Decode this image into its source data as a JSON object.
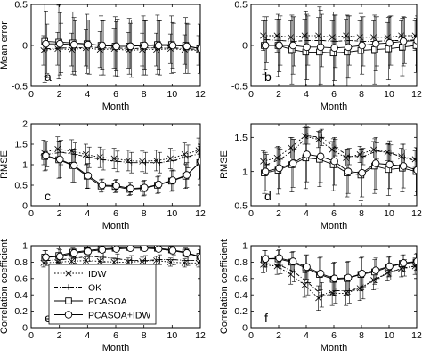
{
  "chart_data": [
    {
      "type": "line",
      "panel_label": "a",
      "xlabel": "Month",
      "ylabel": "Mean error",
      "xlim": [
        0,
        12
      ],
      "ylim": [
        -0.5,
        0.5
      ],
      "xticks": [
        0,
        2,
        4,
        6,
        8,
        10,
        12
      ],
      "yticks": [
        -0.5,
        0,
        0.5
      ],
      "x": [
        1,
        2,
        3,
        4,
        5,
        6,
        7,
        8,
        9,
        10,
        11,
        12
      ],
      "series": [
        {
          "name": "IDW",
          "values": [
            -0.06,
            -0.04,
            -0.05,
            -0.03,
            -0.05,
            -0.04,
            -0.06,
            -0.05,
            -0.05,
            -0.04,
            -0.05,
            -0.06
          ],
          "err": [
            0.18,
            0.2,
            0.2,
            0.22,
            0.22,
            0.24,
            0.22,
            0.2,
            0.2,
            0.18,
            0.18,
            0.18
          ]
        },
        {
          "name": "OK",
          "values": [
            -0.04,
            -0.03,
            -0.03,
            -0.02,
            -0.03,
            -0.03,
            -0.04,
            -0.03,
            -0.03,
            -0.03,
            -0.04,
            -0.05
          ],
          "err": [
            0.3,
            0.3,
            0.33,
            0.33,
            0.33,
            0.35,
            0.35,
            0.33,
            0.33,
            0.3,
            0.3,
            0.3
          ]
        },
        {
          "name": "PCASOA",
          "values": [
            0.05,
            0.04,
            0.03,
            0.02,
            0.0,
            -0.01,
            -0.01,
            0.0,
            0.01,
            0.01,
            0.0,
            -0.04
          ],
          "err": [
            0.5,
            0.45,
            0.38,
            0.36,
            0.36,
            0.36,
            0.34,
            0.36,
            0.36,
            0.35,
            0.34,
            0.3
          ]
        },
        {
          "name": "PCASOA+IDW",
          "values": [
            0.02,
            0.02,
            0.01,
            0.01,
            0.0,
            -0.01,
            -0.01,
            0.0,
            0.0,
            0.0,
            -0.01,
            -0.04
          ],
          "err": [
            0.4,
            0.38,
            0.33,
            0.3,
            0.3,
            0.3,
            0.28,
            0.3,
            0.3,
            0.28,
            0.28,
            0.25
          ]
        }
      ]
    },
    {
      "type": "line",
      "panel_label": "b",
      "xlabel": "Month",
      "ylabel": "",
      "xlim": [
        0,
        12
      ],
      "ylim": [
        -0.5,
        0.5
      ],
      "xticks": [
        0,
        2,
        4,
        6,
        8,
        10,
        12
      ],
      "yticks": [
        -0.5,
        0,
        0.5
      ],
      "x": [
        1,
        2,
        3,
        4,
        5,
        6,
        7,
        8,
        9,
        10,
        11,
        12
      ],
      "series": [
        {
          "name": "IDW",
          "values": [
            0.12,
            0.12,
            0.1,
            0.12,
            0.12,
            0.1,
            0.12,
            0.1,
            0.1,
            0.1,
            0.12,
            0.12
          ],
          "err": [
            0.18,
            0.2,
            0.2,
            0.2,
            0.22,
            0.2,
            0.2,
            0.2,
            0.2,
            0.18,
            0.18,
            0.18
          ]
        },
        {
          "name": "OK",
          "values": [
            0.07,
            0.06,
            0.05,
            0.06,
            0.06,
            0.05,
            0.06,
            0.05,
            0.05,
            0.06,
            0.06,
            0.07
          ],
          "err": [
            0.28,
            0.3,
            0.3,
            0.3,
            0.32,
            0.32,
            0.3,
            0.3,
            0.3,
            0.3,
            0.28,
            0.28
          ]
        },
        {
          "name": "PCASOA",
          "values": [
            0.0,
            0.0,
            -0.05,
            -0.08,
            -0.08,
            -0.09,
            -0.08,
            -0.06,
            -0.05,
            -0.04,
            -0.02,
            0.0
          ],
          "err": [
            0.35,
            0.38,
            0.42,
            0.5,
            0.55,
            0.5,
            0.45,
            0.45,
            0.42,
            0.38,
            0.35,
            0.33
          ]
        },
        {
          "name": "PCASOA+IDW",
          "values": [
            0.0,
            0.0,
            0.0,
            -0.02,
            -0.02,
            -0.03,
            -0.02,
            0.0,
            0.02,
            0.03,
            0.05,
            0.06
          ],
          "err": [
            0.3,
            0.32,
            0.35,
            0.4,
            0.45,
            0.4,
            0.38,
            0.35,
            0.33,
            0.32,
            0.3,
            0.3
          ]
        }
      ]
    },
    {
      "type": "line",
      "panel_label": "c",
      "xlabel": "Month",
      "ylabel": "RMSE",
      "xlim": [
        0,
        12
      ],
      "ylim": [
        0,
        2
      ],
      "xticks": [
        0,
        2,
        4,
        6,
        8,
        10,
        12
      ],
      "yticks": [
        0,
        0.5,
        1,
        1.5,
        2
      ],
      "x": [
        1,
        2,
        3,
        4,
        5,
        6,
        7,
        8,
        9,
        10,
        11,
        12
      ],
      "series": [
        {
          "name": "IDW",
          "values": [
            1.3,
            1.38,
            1.33,
            1.25,
            1.18,
            1.15,
            1.1,
            1.08,
            1.1,
            1.15,
            1.25,
            1.35
          ],
          "err": [
            0.3,
            0.3,
            0.28,
            0.25,
            0.25,
            0.25,
            0.25,
            0.25,
            0.25,
            0.25,
            0.28,
            0.3
          ]
        },
        {
          "name": "OK",
          "values": [
            1.25,
            1.3,
            1.25,
            1.18,
            1.12,
            1.08,
            1.05,
            1.05,
            1.05,
            1.1,
            1.2,
            1.28
          ],
          "err": [
            0.3,
            0.3,
            0.28,
            0.25,
            0.25,
            0.25,
            0.25,
            0.25,
            0.25,
            0.25,
            0.28,
            0.3
          ]
        },
        {
          "name": "PCASOA",
          "values": [
            1.2,
            1.12,
            0.98,
            0.72,
            0.48,
            0.47,
            0.4,
            0.42,
            0.5,
            0.6,
            0.72,
            1.05
          ],
          "err": [
            0.35,
            0.45,
            0.4,
            0.3,
            0.15,
            0.15,
            0.15,
            0.18,
            0.2,
            0.25,
            0.3,
            0.4
          ]
        },
        {
          "name": "PCASOA+IDW",
          "values": [
            1.22,
            1.13,
            0.98,
            0.73,
            0.5,
            0.49,
            0.42,
            0.44,
            0.52,
            0.62,
            0.75,
            1.08
          ],
          "err": [
            0.35,
            0.45,
            0.4,
            0.3,
            0.15,
            0.15,
            0.15,
            0.18,
            0.2,
            0.25,
            0.3,
            0.4
          ]
        }
      ]
    },
    {
      "type": "line",
      "panel_label": "d",
      "xlabel": "Month",
      "ylabel": "RMSE",
      "xlim": [
        0,
        12
      ],
      "ylim": [
        0.5,
        1.7
      ],
      "xticks": [
        0,
        2,
        4,
        6,
        8,
        10,
        12
      ],
      "yticks": [
        0.5,
        1,
        1.5
      ],
      "x": [
        1,
        2,
        3,
        4,
        5,
        6,
        7,
        8,
        9,
        10,
        11,
        12
      ],
      "series": [
        {
          "name": "IDW",
          "values": [
            1.15,
            1.2,
            1.35,
            1.52,
            1.47,
            1.32,
            1.2,
            1.25,
            1.32,
            1.28,
            1.22,
            1.18
          ],
          "err": [
            0.15,
            0.15,
            0.15,
            0.12,
            0.12,
            0.12,
            0.12,
            0.12,
            0.12,
            0.12,
            0.12,
            0.12
          ]
        },
        {
          "name": "OK",
          "values": [
            1.1,
            1.18,
            1.32,
            1.52,
            1.5,
            1.35,
            1.22,
            1.22,
            1.3,
            1.27,
            1.2,
            1.15
          ],
          "err": [
            0.15,
            0.15,
            0.15,
            0.12,
            0.12,
            0.12,
            0.12,
            0.12,
            0.12,
            0.12,
            0.12,
            0.12
          ]
        },
        {
          "name": "PCASOA",
          "values": [
            0.98,
            1.02,
            1.1,
            1.2,
            1.18,
            1.1,
            0.98,
            0.95,
            1.08,
            1.03,
            1.05,
            1.0
          ],
          "err": [
            0.3,
            0.35,
            0.4,
            0.45,
            0.4,
            0.38,
            0.35,
            0.38,
            0.4,
            0.38,
            0.35,
            0.35
          ]
        },
        {
          "name": "PCASOA+IDW",
          "values": [
            1.0,
            1.05,
            1.12,
            1.25,
            1.22,
            1.15,
            1.0,
            0.98,
            1.12,
            1.1,
            1.08,
            1.02
          ],
          "err": [
            0.28,
            0.3,
            0.35,
            0.4,
            0.38,
            0.35,
            0.32,
            0.35,
            0.38,
            0.35,
            0.32,
            0.32
          ]
        }
      ]
    },
    {
      "type": "line",
      "panel_label": "e",
      "xlabel": "Month",
      "ylabel": "Correlation coefficient",
      "xlim": [
        0,
        12
      ],
      "ylim": [
        0,
        1
      ],
      "xticks": [
        0,
        2,
        4,
        6,
        8,
        10,
        12
      ],
      "yticks": [
        0,
        0.2,
        0.4,
        0.6,
        0.8,
        1
      ],
      "x": [
        1,
        2,
        3,
        4,
        5,
        6,
        7,
        8,
        9,
        10,
        11,
        12
      ],
      "series": [
        {
          "name": "IDW",
          "values": [
            0.79,
            0.8,
            0.81,
            0.82,
            0.81,
            0.8,
            0.8,
            0.81,
            0.82,
            0.8,
            0.79,
            0.79
          ],
          "err": [
            0.05,
            0.05,
            0.05,
            0.05,
            0.05,
            0.05,
            0.05,
            0.05,
            0.05,
            0.05,
            0.05,
            0.05
          ]
        },
        {
          "name": "OK",
          "values": [
            0.82,
            0.83,
            0.85,
            0.87,
            0.86,
            0.84,
            0.82,
            0.82,
            0.83,
            0.83,
            0.82,
            0.82
          ],
          "err": [
            0.06,
            0.06,
            0.06,
            0.06,
            0.06,
            0.06,
            0.06,
            0.06,
            0.06,
            0.06,
            0.06,
            0.06
          ]
        },
        {
          "name": "PCASOA",
          "values": [
            0.86,
            0.88,
            0.92,
            0.94,
            0.96,
            0.97,
            0.98,
            0.98,
            0.97,
            0.95,
            0.92,
            0.87
          ],
          "err": [
            0.08,
            0.08,
            0.05,
            0.04,
            0.03,
            0.02,
            0.02,
            0.02,
            0.03,
            0.04,
            0.05,
            0.08
          ]
        },
        {
          "name": "PCASOA+IDW",
          "values": [
            0.86,
            0.87,
            0.91,
            0.93,
            0.95,
            0.96,
            0.97,
            0.97,
            0.96,
            0.94,
            0.91,
            0.86
          ],
          "err": [
            0.08,
            0.08,
            0.05,
            0.04,
            0.03,
            0.02,
            0.02,
            0.02,
            0.03,
            0.04,
            0.05,
            0.08
          ]
        }
      ]
    },
    {
      "type": "line",
      "panel_label": "f",
      "xlabel": "Month",
      "ylabel": "Correlation coefficient",
      "xlim": [
        0,
        12
      ],
      "ylim": [
        0,
        1
      ],
      "xticks": [
        0,
        2,
        4,
        6,
        8,
        10,
        12
      ],
      "yticks": [
        0,
        0.2,
        0.4,
        0.6,
        0.8,
        1
      ],
      "x": [
        1,
        2,
        3,
        4,
        5,
        6,
        7,
        8,
        9,
        10,
        11,
        12
      ],
      "series": [
        {
          "name": "IDW",
          "values": [
            0.77,
            0.75,
            0.65,
            0.52,
            0.36,
            0.42,
            0.42,
            0.48,
            0.58,
            0.67,
            0.72,
            0.75
          ],
          "err": [
            0.1,
            0.1,
            0.12,
            0.15,
            0.15,
            0.15,
            0.15,
            0.15,
            0.12,
            0.1,
            0.1,
            0.1
          ]
        },
        {
          "name": "OK",
          "values": [
            0.78,
            0.76,
            0.68,
            0.55,
            0.4,
            0.45,
            0.45,
            0.5,
            0.6,
            0.68,
            0.73,
            0.76
          ],
          "err": [
            0.1,
            0.1,
            0.12,
            0.15,
            0.15,
            0.15,
            0.15,
            0.15,
            0.12,
            0.1,
            0.1,
            0.1
          ]
        },
        {
          "name": "PCASOA",
          "values": [
            0.84,
            0.84,
            0.8,
            0.73,
            0.65,
            0.59,
            0.6,
            0.65,
            0.68,
            0.74,
            0.78,
            0.8
          ],
          "err": [
            0.1,
            0.1,
            0.12,
            0.15,
            0.2,
            0.2,
            0.2,
            0.2,
            0.15,
            0.12,
            0.1,
            0.1
          ]
        },
        {
          "name": "PCASOA+IDW",
          "values": [
            0.84,
            0.85,
            0.81,
            0.74,
            0.66,
            0.6,
            0.61,
            0.66,
            0.7,
            0.75,
            0.79,
            0.81
          ],
          "err": [
            0.1,
            0.1,
            0.12,
            0.15,
            0.2,
            0.2,
            0.2,
            0.2,
            0.15,
            0.12,
            0.1,
            0.1
          ]
        }
      ]
    }
  ],
  "legend": {
    "entries": [
      "IDW",
      "OK",
      "PCASOA",
      "PCASOA+IDW"
    ],
    "placement": "inside-bottom-left of panel e"
  },
  "style": {
    "line_color": "#000000",
    "axes_color": "#000000",
    "background": "#ffffff",
    "markers": {
      "IDW": "x",
      "OK": "+",
      "PCASOA": "square",
      "PCASOA+IDW": "circle"
    },
    "dashes": {
      "IDW": "dotted",
      "OK": "dash-dot",
      "PCASOA": "solid",
      "PCASOA+IDW": "solid"
    }
  }
}
